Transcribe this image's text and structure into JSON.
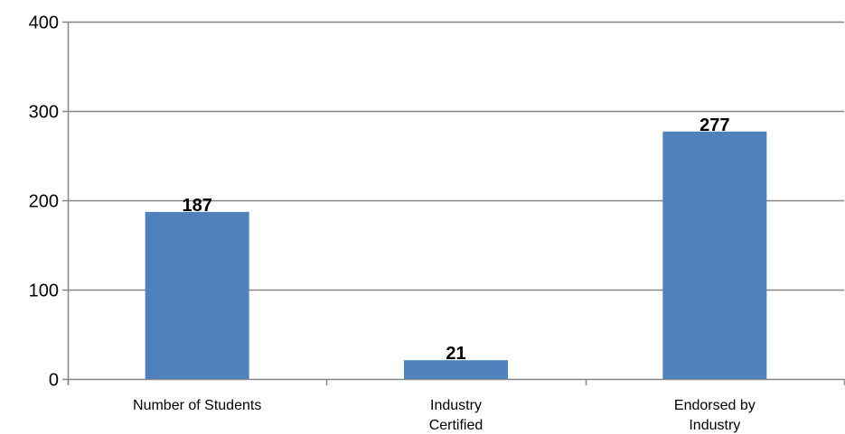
{
  "chart_data": {
    "type": "bar",
    "title": "",
    "xlabel": "",
    "ylabel": "",
    "categories": [
      "Number of Students",
      "Industry Certified",
      "Endorsed by Industry"
    ],
    "category_lines": [
      [
        "Number of Students"
      ],
      [
        "Industry",
        "Certified"
      ],
      [
        "Endorsed by",
        "Industry"
      ]
    ],
    "values": [
      187,
      21,
      277
    ],
    "data_labels": [
      "187",
      "21",
      "277"
    ],
    "ylim": [
      0,
      400
    ],
    "yticks": [
      0,
      100,
      200,
      300,
      400
    ],
    "ytick_labels": [
      "0",
      "100",
      "200",
      "300",
      "400"
    ],
    "grid": true,
    "legend": "none",
    "colors": {
      "bar": "#4f81bd",
      "grid": "#868686",
      "axis": "#868686",
      "text": "#000000"
    }
  }
}
